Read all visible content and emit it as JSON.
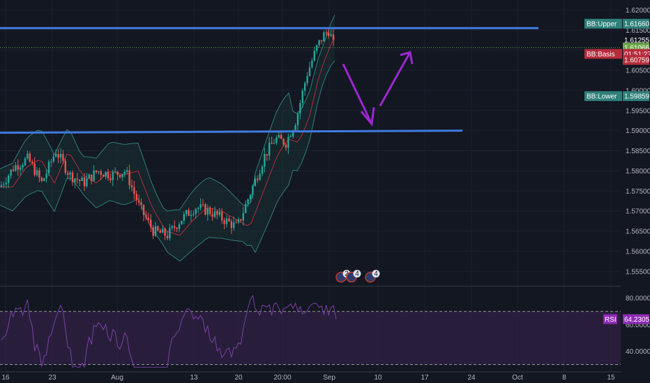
{
  "colors": {
    "background": "#131722",
    "grid": "#1e2230",
    "up_candle": "#26a69a",
    "down_candle": "#ef5350",
    "bb_band": "#2f7f7a",
    "bb_basis": "#b52c3c",
    "resistance_line": "#3f7be0",
    "arrow": "#9c27d0",
    "rsi_line": "#7b3fa5",
    "rsi_fill": "#3a2450",
    "axis_text": "#b2b5be"
  },
  "chart_data": [
    {
      "type": "candlestick",
      "title": "",
      "ylim": [
        1.5515,
        1.6225
      ],
      "y_ticks": [
        "1.62000",
        "1.61500",
        "1.61000",
        "1.60500",
        "1.60000",
        "1.59500",
        "1.59000",
        "1.58500",
        "1.58000",
        "1.57500",
        "1.57000",
        "1.56500",
        "1.56000",
        "1.55500"
      ],
      "y_tick_values": [
        1.62,
        1.615,
        1.61,
        1.605,
        1.6,
        1.595,
        1.59,
        1.585,
        1.58,
        1.575,
        1.57,
        1.565,
        1.56,
        1.555
      ],
      "x_ticks": [
        "16",
        "23",
        "Aug",
        "13",
        "20",
        "20:00",
        "Sep",
        "10",
        "17",
        "24",
        "Oct",
        "8",
        "15"
      ],
      "x_tick_positions": [
        8,
        75,
        168,
        278,
        342,
        405,
        472,
        542,
        609,
        676,
        742,
        809,
        876
      ],
      "price_path_x": [
        0,
        20,
        40,
        60,
        80,
        100,
        120,
        140,
        160,
        180,
        200,
        220,
        240,
        260,
        280,
        300,
        320,
        340,
        360,
        380,
        395,
        410,
        425,
        440,
        455,
        465,
        472,
        480
      ],
      "price_path_y": [
        1.576,
        1.581,
        1.583,
        1.577,
        1.585,
        1.579,
        1.577,
        1.58,
        1.579,
        1.58,
        1.571,
        1.565,
        1.564,
        1.568,
        1.571,
        1.57,
        1.568,
        1.566,
        1.575,
        1.584,
        1.588,
        1.587,
        1.593,
        1.604,
        1.611,
        1.614,
        1.615,
        1.61
      ],
      "horizontal_lines": [
        {
          "name": "resistance-upper",
          "y_start": 1.6155,
          "y_end": 1.6155,
          "x_start": 0,
          "x_end": 772
        },
        {
          "name": "resistance-lower",
          "y_start": 1.5895,
          "y_end": 1.59,
          "x_start": 0,
          "x_end": 663
        }
      ],
      "price_labels": [
        {
          "text": "BB:Upper",
          "value": "1.61660",
          "y": 1.6166,
          "color": "#2f7f7a"
        },
        {
          "text": "",
          "value": "1.61255",
          "y": 1.61255,
          "color": "#131722"
        },
        {
          "text": "",
          "value": "1.61066",
          "y": 1.61066,
          "color": "#6ea64b"
        },
        {
          "text": "BB:Basis",
          "value": "01:51:27",
          "y": 1.6091,
          "color": "#b52c3c"
        },
        {
          "text": "",
          "value": "1.60759",
          "y": 1.60759,
          "color": "#b52c3c"
        },
        {
          "text": "BB:Lower",
          "value": "1.59859",
          "y": 1.59859,
          "color": "#2f7f7a"
        }
      ]
    },
    {
      "type": "line",
      "series": [
        {
          "name": "RSI",
          "last_value": 64.2305
        }
      ],
      "ylim": [
        25,
        88
      ],
      "y_ticks": [
        "80.0000",
        "60.0000",
        "40.0000"
      ],
      "y_tick_values": [
        80,
        60,
        40
      ],
      "upper_band": 70,
      "lower_band": 30
    }
  ],
  "event_markers": [
    {
      "label": "2",
      "x": 495
    },
    {
      "label": "4",
      "x": 510
    },
    {
      "label": "4",
      "x": 537
    }
  ]
}
